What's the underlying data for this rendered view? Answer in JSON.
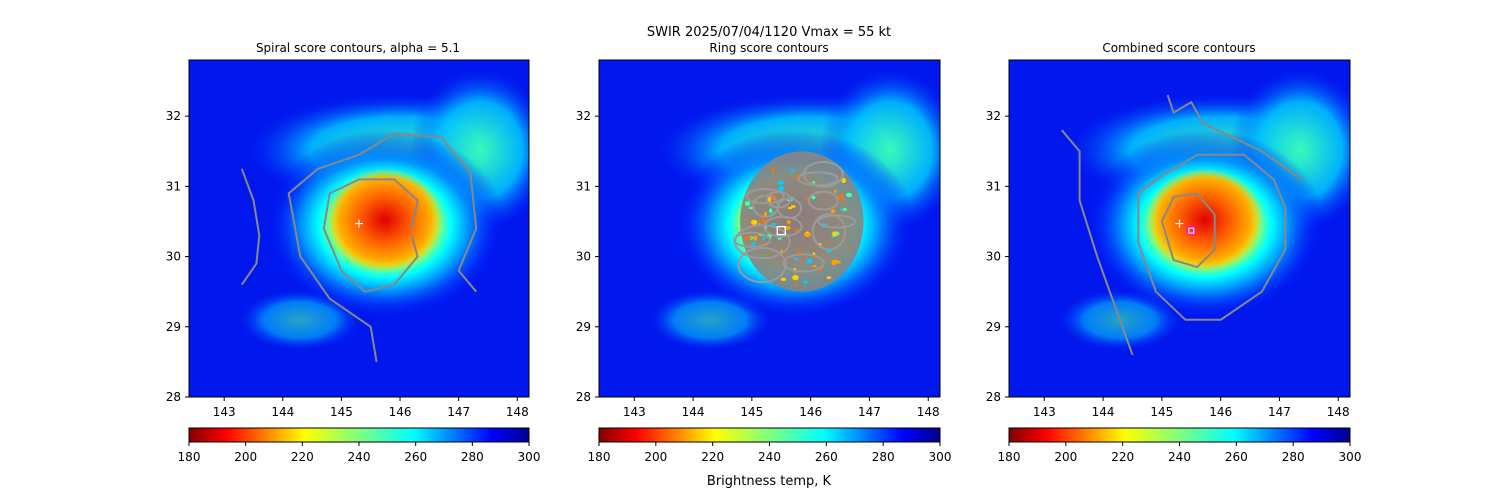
{
  "figure": {
    "suptitle_line1": "SWIR  2025/07/04/1120    Vmax = 55 kt",
    "colorbar_label": "Brightness temp, K"
  },
  "chart_data": [
    {
      "type": "heatmap",
      "title": "Spiral score contours, alpha =  5.1",
      "xlim": [
        142.4,
        148.2
      ],
      "ylim": [
        28.0,
        32.8
      ],
      "xticks": [
        143,
        144,
        145,
        146,
        147,
        148
      ],
      "yticks": [
        28,
        29,
        30,
        31,
        32
      ],
      "storm_center": {
        "lon": 145.9,
        "lat": 30.5
      },
      "marker_plus": {
        "lon": 145.3,
        "lat": 30.47
      },
      "contours": [
        {
          "name": "",
          "points": [
            [
              143.3,
              29.6
            ],
            [
              143.55,
              29.9
            ],
            [
              143.6,
              30.3
            ],
            [
              143.5,
              30.8
            ],
            [
              143.3,
              31.25
            ]
          ]
        },
        {
          "name": "",
          "points": [
            [
              145.6,
              28.5
            ],
            [
              145.5,
              29.0
            ],
            [
              144.8,
              29.4
            ],
            [
              144.3,
              30.0
            ],
            [
              144.1,
              30.9
            ],
            [
              144.6,
              31.25
            ],
            [
              145.3,
              31.45
            ],
            [
              145.9,
              31.75
            ],
            [
              146.7,
              31.7
            ],
            [
              147.2,
              31.2
            ],
            [
              147.3,
              30.4
            ],
            [
              147.0,
              29.8
            ],
            [
              147.3,
              29.5
            ]
          ]
        },
        {
          "name": "",
          "points": [
            [
              146.2,
              30.3
            ],
            [
              146.3,
              30.0
            ],
            [
              145.9,
              29.6
            ],
            [
              145.4,
              29.5
            ],
            [
              145.0,
              29.8
            ],
            [
              144.7,
              30.4
            ],
            [
              144.8,
              30.9
            ],
            [
              145.3,
              31.1
            ],
            [
              145.9,
              31.1
            ],
            [
              146.3,
              30.8
            ],
            [
              146.2,
              30.4
            ]
          ]
        }
      ],
      "colorbar": {
        "label": "",
        "range": [
          180,
          300
        ],
        "ticks": [
          180,
          200,
          220,
          240,
          260,
          280,
          300
        ],
        "cmap": "jet_r"
      }
    },
    {
      "type": "heatmap",
      "title": "Ring score contours",
      "xlim": [
        142.4,
        148.2
      ],
      "ylim": [
        28.0,
        32.8
      ],
      "xticks": [
        143,
        144,
        145,
        146,
        147,
        148
      ],
      "yticks": [
        28,
        29,
        30,
        31,
        32
      ],
      "storm_center": {
        "lon": 145.9,
        "lat": 30.5
      },
      "marker_square": {
        "lon": 145.5,
        "lat": 30.37
      },
      "ring_region": {
        "center": {
          "lon": 145.85,
          "lat": 30.5
        },
        "radius_lon": 1.05,
        "radius_lat": 1.0
      },
      "colorbar": {
        "label": "Brightness temp, K",
        "range": [
          180,
          300
        ],
        "ticks": [
          180,
          200,
          220,
          240,
          260,
          280,
          300
        ],
        "cmap": "jet_r"
      }
    },
    {
      "type": "heatmap",
      "title": "Combined score contours",
      "xlim": [
        142.4,
        148.2
      ],
      "ylim": [
        28.0,
        32.8
      ],
      "xticks": [
        143,
        144,
        145,
        146,
        147,
        148
      ],
      "yticks": [
        28,
        29,
        30,
        31,
        32
      ],
      "storm_center": {
        "lon": 145.9,
        "lat": 30.5
      },
      "marker_plus": {
        "lon": 145.3,
        "lat": 30.47
      },
      "marker_circle": {
        "lon": 145.5,
        "lat": 30.37
      },
      "contours": [
        {
          "name": "",
          "points": [
            [
              144.5,
              28.6
            ],
            [
              144.2,
              29.3
            ],
            [
              143.9,
              30.0
            ],
            [
              143.6,
              30.8
            ],
            [
              143.6,
              31.5
            ],
            [
              143.3,
              31.8
            ]
          ]
        },
        {
          "name": "",
          "points": [
            [
              145.1,
              32.3
            ],
            [
              145.2,
              32.05
            ],
            [
              145.5,
              32.2
            ],
            [
              145.7,
              31.9
            ],
            [
              146.2,
              31.7
            ],
            [
              146.7,
              31.5
            ],
            [
              147.2,
              31.2
            ],
            [
              147.4,
              31.1
            ]
          ]
        },
        {
          "name": "",
          "points": [
            [
              147.1,
              30.7
            ],
            [
              147.1,
              30.1
            ],
            [
              146.7,
              29.5
            ],
            [
              146.0,
              29.1
            ],
            [
              145.4,
              29.1
            ],
            [
              144.9,
              29.5
            ],
            [
              144.6,
              30.2
            ],
            [
              144.6,
              30.9
            ],
            [
              145.0,
              31.15
            ],
            [
              145.6,
              31.45
            ],
            [
              146.4,
              31.45
            ],
            [
              146.9,
              31.1
            ],
            [
              147.1,
              30.7
            ]
          ]
        },
        {
          "name": "",
          "points": [
            [
              145.9,
              30.6
            ],
            [
              145.9,
              30.1
            ],
            [
              145.6,
              29.85
            ],
            [
              145.2,
              29.95
            ],
            [
              145.0,
              30.5
            ],
            [
              145.2,
              30.85
            ],
            [
              145.6,
              30.9
            ],
            [
              145.9,
              30.6
            ]
          ]
        }
      ],
      "colorbar": {
        "label": "",
        "range": [
          180,
          300
        ],
        "ticks": [
          180,
          200,
          220,
          240,
          260,
          280,
          300
        ],
        "cmap": "jet_r"
      }
    }
  ]
}
